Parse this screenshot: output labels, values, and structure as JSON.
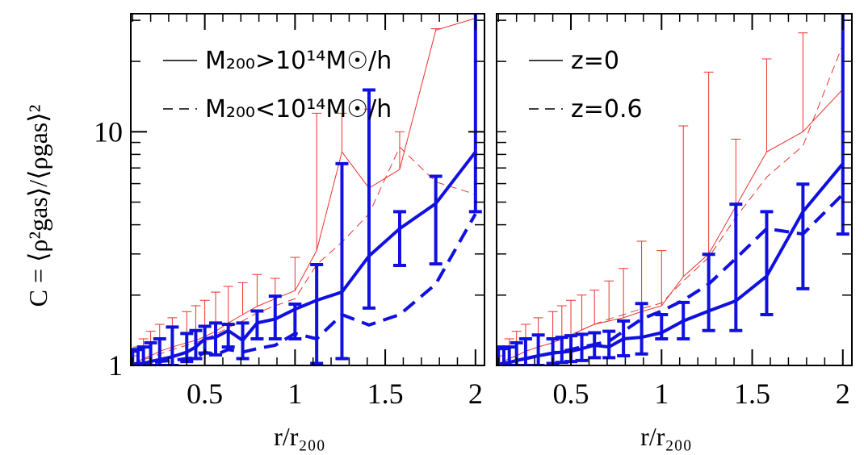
{
  "chart_data": [
    {
      "type": "line",
      "xlabel": "r/r₂₀₀",
      "ylabel": "C = ⟨ρ²gas⟩/⟨ρgas⟩²",
      "xlim": [
        0.09,
        2.05
      ],
      "ylim": [
        1,
        32
      ],
      "ylog": true,
      "xticks": [
        0.5,
        1,
        1.5,
        2
      ],
      "xminorticks": [
        0.1,
        0.2,
        0.3,
        0.4,
        0.6,
        0.7,
        0.8,
        0.9,
        1.1,
        1.2,
        1.3,
        1.4,
        1.6,
        1.7,
        1.8,
        1.9
      ],
      "yticks": [
        1,
        10
      ],
      "yminorticks": [
        2,
        3,
        4,
        5,
        6,
        7,
        8,
        9,
        20,
        30
      ],
      "legend": [
        {
          "label": "M₂₀₀>10¹⁴M☉/h",
          "dash": false
        },
        {
          "label": "M₂₀₀<10¹⁴M☉/h",
          "dash": true
        }
      ],
      "x": [
        0.1,
        0.13,
        0.16,
        0.2,
        0.25,
        0.32,
        0.4,
        0.45,
        0.5,
        0.56,
        0.63,
        0.71,
        0.79,
        0.89,
        1.0,
        1.12,
        1.26,
        1.41,
        1.58,
        1.78,
        2.0
      ],
      "series": [
        {
          "color": "#e8342e",
          "dash": false,
          "width": 1,
          "values": [
            1.02,
            1.04,
            1.07,
            1.1,
            1.15,
            1.2,
            1.25,
            1.28,
            1.33,
            1.4,
            1.52,
            1.65,
            1.79,
            1.93,
            2.09,
            3.1,
            8.2,
            5.74,
            6.9,
            27.2,
            30.6
          ],
          "err_high": [
            1.1,
            1.2,
            1.3,
            1.4,
            1.5,
            1.6,
            1.7,
            1.8,
            1.9,
            2.06,
            2.18,
            2.26,
            2.45,
            2.36,
            2.9,
            12,
            12,
            12.5,
            10,
            27.6,
            33
          ]
        },
        {
          "color": "#e8342e",
          "dash": true,
          "width": 1,
          "values": [
            1.02,
            1.03,
            1.06,
            1.08,
            1.12,
            1.17,
            1.22,
            1.25,
            1.3,
            1.36,
            1.45,
            1.55,
            1.68,
            1.8,
            1.93,
            2.7,
            3.37,
            4.45,
            8.6,
            6.1,
            5.4
          ]
        },
        {
          "color": "#1010e0",
          "dash": false,
          "width": 4,
          "values": [
            1.01,
            1.02,
            1.02,
            1.04,
            1.06,
            1.09,
            1.14,
            1.2,
            1.3,
            1.32,
            1.41,
            1.28,
            1.52,
            1.58,
            1.74,
            1.9,
            2.06,
            2.94,
            3.85,
            4.93,
            8.2
          ],
          "err_low": [
            1.0,
            1.0,
            1.0,
            1.0,
            1.0,
            1.0,
            1.04,
            1.07,
            1.13,
            1.11,
            1.2,
            1.07,
            1.3,
            1.3,
            1.3,
            1.02,
            1.07,
            1.76,
            2.68,
            2.72,
            4.55
          ],
          "err_high": [
            1.15,
            1.17,
            1.2,
            1.25,
            1.3,
            1.46,
            1.37,
            1.41,
            1.47,
            1.52,
            1.5,
            1.52,
            1.71,
            1.98,
            1.83,
            2.7,
            7.3,
            15.1,
            4.55,
            6.45,
            35
          ]
        },
        {
          "color": "#1010e0",
          "dash": true,
          "width": 4,
          "values": [
            1.01,
            1.01,
            1.02,
            1.02,
            1.04,
            1.05,
            1.07,
            1.08,
            1.14,
            1.11,
            1.17,
            1.14,
            1.18,
            1.22,
            1.37,
            1.3,
            1.65,
            1.49,
            1.65,
            2.23,
            4.45
          ]
        }
      ]
    },
    {
      "type": "line",
      "xlabel": "r/r₂₀₀",
      "xlim": [
        0.09,
        2.05
      ],
      "ylim": [
        1,
        32
      ],
      "ylog": true,
      "xticks": [
        0.5,
        1,
        1.5,
        2
      ],
      "xminorticks": [
        0.1,
        0.2,
        0.3,
        0.4,
        0.6,
        0.7,
        0.8,
        0.9,
        1.1,
        1.2,
        1.3,
        1.4,
        1.6,
        1.7,
        1.8,
        1.9
      ],
      "yminorticks": [
        1,
        2,
        3,
        4,
        5,
        6,
        7,
        8,
        9,
        10,
        20,
        30
      ],
      "legend": [
        {
          "label": "z=0",
          "dash": false
        },
        {
          "label": "z=0.6",
          "dash": true
        }
      ],
      "x": [
        0.1,
        0.13,
        0.16,
        0.2,
        0.25,
        0.32,
        0.4,
        0.45,
        0.5,
        0.56,
        0.63,
        0.71,
        0.79,
        0.89,
        1.0,
        1.12,
        1.26,
        1.41,
        1.58,
        1.78,
        2.0
      ],
      "series": [
        {
          "color": "#e8342e",
          "dash": false,
          "width": 1,
          "values": [
            1.02,
            1.04,
            1.07,
            1.1,
            1.15,
            1.2,
            1.25,
            1.3,
            1.35,
            1.42,
            1.5,
            1.55,
            1.6,
            1.7,
            1.8,
            2.4,
            3.0,
            4.8,
            8.2,
            10,
            15.2
          ],
          "err_high": [
            1.1,
            1.2,
            1.3,
            1.4,
            1.5,
            1.6,
            1.7,
            1.8,
            1.9,
            2.0,
            2.1,
            2.3,
            2.6,
            3.4,
            3.1,
            10.6,
            18,
            9.3,
            20.5,
            26.5,
            33
          ]
        },
        {
          "color": "#e8342e",
          "dash": true,
          "width": 1,
          "values": [
            1.02,
            1.04,
            1.07,
            1.1,
            1.15,
            1.2,
            1.25,
            1.3,
            1.35,
            1.42,
            1.5,
            1.58,
            1.65,
            1.75,
            1.85,
            2.3,
            2.9,
            4.3,
            6.4,
            8.7,
            23.6
          ]
        },
        {
          "color": "#1010e0",
          "dash": false,
          "width": 4,
          "values": [
            1.01,
            1.02,
            1.03,
            1.05,
            1.07,
            1.1,
            1.13,
            1.14,
            1.15,
            1.18,
            1.22,
            1.2,
            1.3,
            1.32,
            1.38,
            1.55,
            1.71,
            1.89,
            2.41,
            4.55,
            7.3
          ],
          "err_low": [
            1.0,
            1.0,
            1.0,
            1.0,
            1.0,
            1.0,
            1.02,
            1.03,
            1.04,
            1.05,
            1.08,
            1.08,
            1.1,
            1.12,
            1.3,
            1.3,
            1.41,
            1.41,
            1.65,
            2.13,
            3.65
          ],
          "err_high": [
            1.2,
            1.18,
            1.2,
            1.25,
            1.3,
            1.35,
            1.3,
            1.32,
            1.34,
            1.36,
            1.38,
            1.4,
            1.55,
            1.84,
            1.65,
            1.86,
            2.99,
            4.9,
            4.55,
            5.97,
            35
          ]
        },
        {
          "color": "#1010e0",
          "dash": true,
          "width": 4,
          "values": [
            1.01,
            1.02,
            1.03,
            1.05,
            1.07,
            1.1,
            1.13,
            1.15,
            1.17,
            1.2,
            1.23,
            1.27,
            1.4,
            1.58,
            1.71,
            1.9,
            2.23,
            2.87,
            3.85,
            3.65,
            5.4
          ]
        }
      ]
    }
  ]
}
